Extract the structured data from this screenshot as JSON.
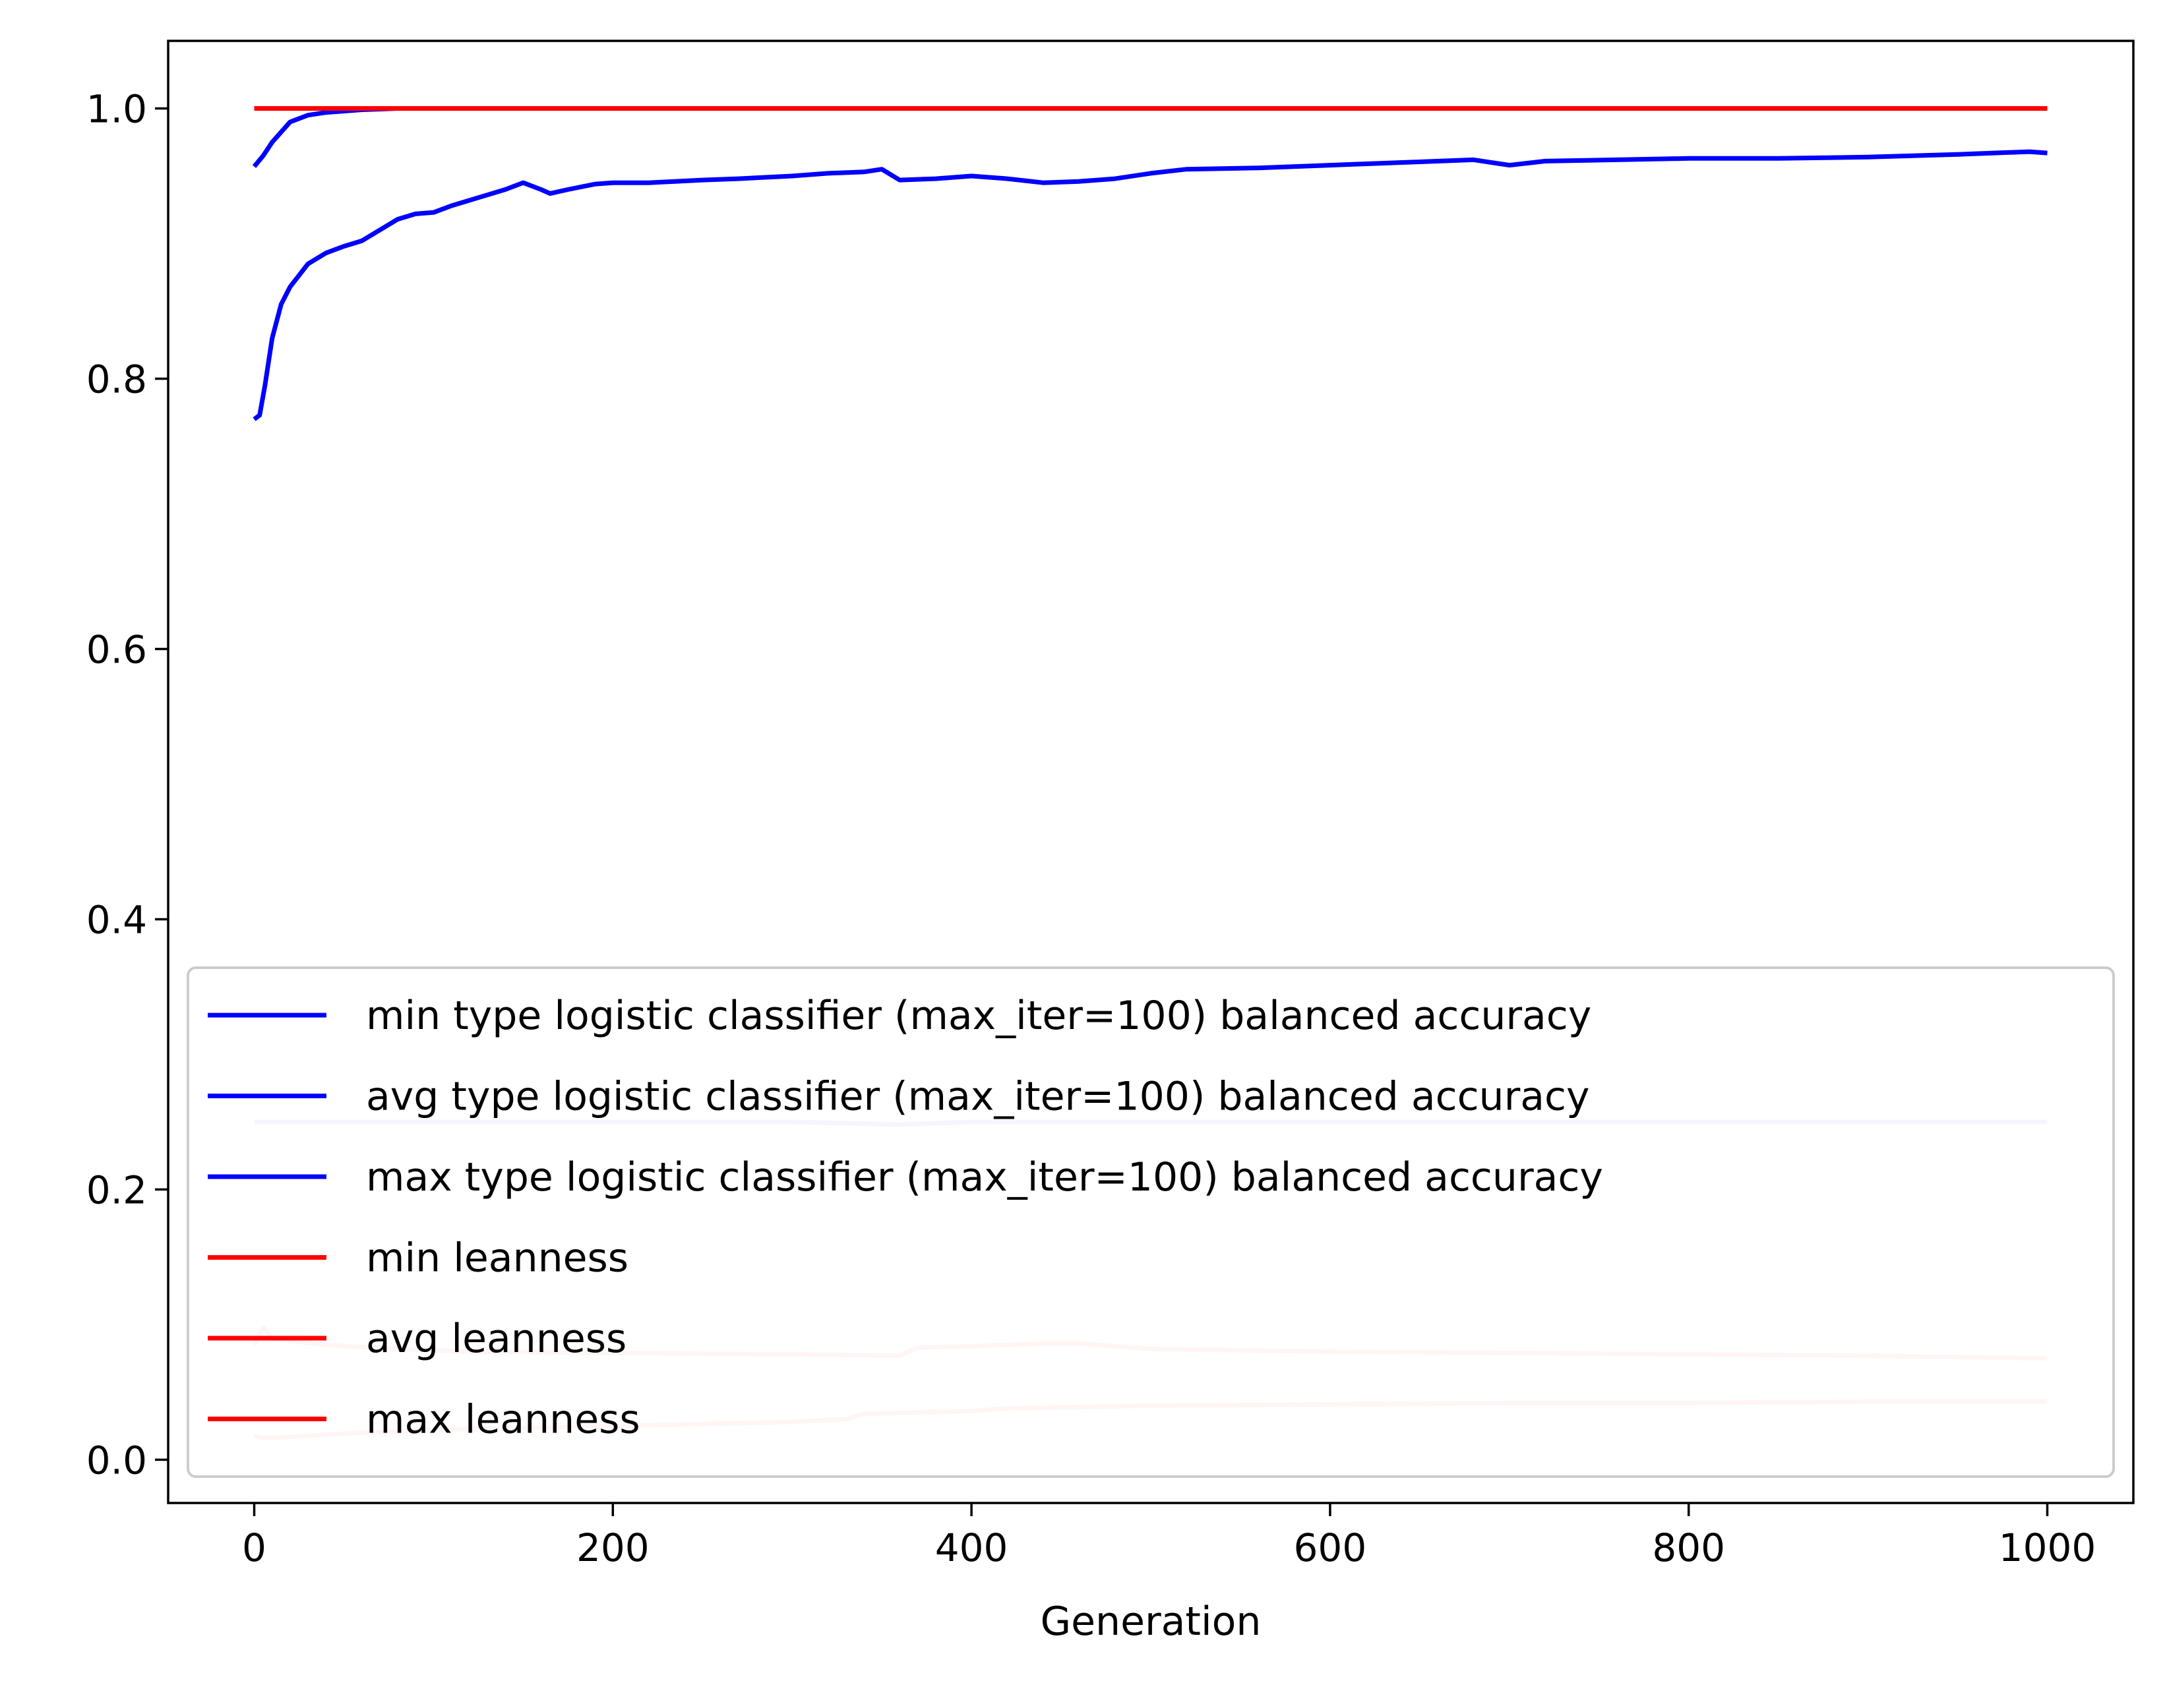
{
  "chart_data": {
    "type": "line",
    "xlabel": "Generation",
    "ylabel": "",
    "title": "",
    "xlim": [
      -48,
      1048
    ],
    "ylim": [
      -0.032,
      1.05
    ],
    "xticks": [
      0,
      200,
      400,
      600,
      800,
      1000
    ],
    "xtick_labels": [
      "0",
      "200",
      "400",
      "600",
      "800",
      "1000"
    ],
    "yticks": [
      0.0,
      0.2,
      0.4,
      0.6,
      0.8,
      1.0
    ],
    "ytick_labels": [
      "0.0",
      "0.2",
      "0.4",
      "0.6",
      "0.8",
      "1.0"
    ],
    "grid": false,
    "legend_position": "lower-left",
    "series": [
      {
        "name": "min type logistic classifier (max_iter=100) balanced accuracy",
        "color": "#0000ff",
        "alpha": 0.2,
        "x": [
          0,
          100,
          200,
          300,
          360,
          400,
          500,
          600,
          700,
          800,
          900,
          1000
        ],
        "y": [
          0.25,
          0.25,
          0.25,
          0.25,
          0.248,
          0.25,
          0.25,
          0.25,
          0.25,
          0.25,
          0.25,
          0.25
        ]
      },
      {
        "name": "avg type logistic classifier (max_iter=100) balanced accuracy",
        "color": "#0000ff",
        "alpha": 1.0,
        "x": [
          0,
          3,
          6,
          10,
          15,
          20,
          30,
          40,
          50,
          60,
          70,
          80,
          90,
          100,
          110,
          120,
          130,
          140,
          150,
          160,
          165,
          175,
          190,
          200,
          220,
          250,
          270,
          300,
          320,
          340,
          350,
          360,
          380,
          400,
          420,
          440,
          460,
          480,
          500,
          520,
          560,
          600,
          640,
          680,
          700,
          720,
          760,
          800,
          850,
          900,
          950,
          990,
          1000
        ],
        "y": [
          0.77,
          0.773,
          0.795,
          0.83,
          0.855,
          0.868,
          0.885,
          0.893,
          0.898,
          0.902,
          0.91,
          0.918,
          0.922,
          0.923,
          0.928,
          0.932,
          0.936,
          0.94,
          0.945,
          0.94,
          0.937,
          0.94,
          0.944,
          0.945,
          0.945,
          0.947,
          0.948,
          0.95,
          0.952,
          0.953,
          0.955,
          0.947,
          0.948,
          0.95,
          0.948,
          0.945,
          0.946,
          0.948,
          0.952,
          0.955,
          0.956,
          0.958,
          0.96,
          0.962,
          0.958,
          0.961,
          0.962,
          0.963,
          0.963,
          0.964,
          0.966,
          0.968,
          0.967
        ]
      },
      {
        "name": "max type logistic classifier (max_iter=100) balanced accuracy",
        "color": "#0000ff",
        "alpha": 1.0,
        "x": [
          0,
          5,
          10,
          20,
          30,
          40,
          60,
          80,
          100,
          1000
        ],
        "y": [
          0.957,
          0.965,
          0.975,
          0.99,
          0.995,
          0.997,
          0.999,
          1.0,
          1.0,
          1.0
        ]
      },
      {
        "name": "min leanness",
        "color": "#ff0000",
        "alpha": 0.2,
        "x": [
          0,
          5,
          20,
          60,
          100,
          200,
          300,
          330,
          340,
          400,
          420,
          500,
          600,
          700,
          800,
          900,
          1000
        ],
        "y": [
          0.018,
          0.016,
          0.017,
          0.02,
          0.022,
          0.025,
          0.028,
          0.03,
          0.034,
          0.036,
          0.038,
          0.04,
          0.041,
          0.042,
          0.042,
          0.043,
          0.043
        ]
      },
      {
        "name": "avg leanness",
        "color": "#ff0000",
        "alpha": 0.2,
        "x": [
          0,
          5,
          10,
          20,
          40,
          80,
          120,
          200,
          300,
          360,
          370,
          400,
          440,
          460,
          500,
          600,
          700,
          800,
          900,
          1000
        ],
        "y": [
          0.085,
          0.098,
          0.09,
          0.088,
          0.085,
          0.082,
          0.08,
          0.079,
          0.078,
          0.077,
          0.083,
          0.084,
          0.086,
          0.086,
          0.082,
          0.08,
          0.079,
          0.078,
          0.077,
          0.075
        ]
      },
      {
        "name": "max leanness",
        "color": "#ff0000",
        "alpha": 1.0,
        "x": [
          0,
          1000
        ],
        "y": [
          1.0,
          1.0
        ]
      }
    ]
  }
}
